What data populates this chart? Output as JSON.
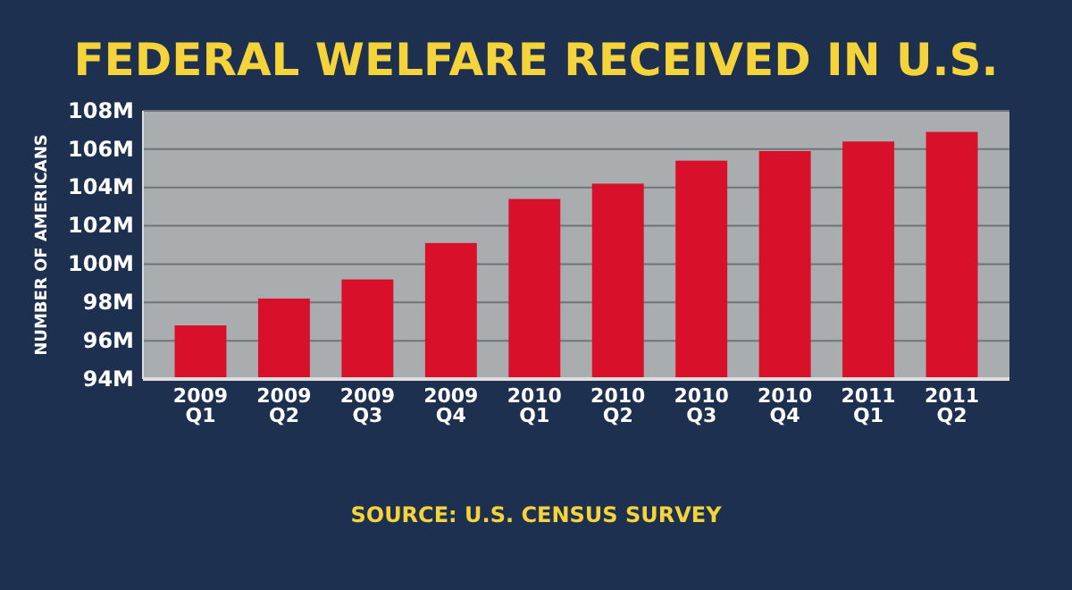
{
  "chart_data": {
    "type": "bar",
    "title": "FEDERAL WELFARE RECEIVED IN U.S.",
    "ylabel": "NUMBER OF AMERICANS",
    "categories": [
      "2009 Q1",
      "2009 Q2",
      "2009 Q3",
      "2009 Q4",
      "2010 Q1",
      "2010 Q2",
      "2010 Q3",
      "2010 Q4",
      "2011 Q1",
      "2011 Q2"
    ],
    "values": [
      96.8,
      98.2,
      99.2,
      101.1,
      103.4,
      104.2,
      105.4,
      105.9,
      106.4,
      106.9
    ],
    "color": "#d8102a",
    "ylim": [
      94,
      108
    ],
    "yticks": [
      {
        "value": 94,
        "label": "94M"
      },
      {
        "value": 96,
        "label": "96M"
      },
      {
        "value": 98,
        "label": "98M"
      },
      {
        "value": 100,
        "label": "100M"
      },
      {
        "value": 102,
        "label": "102M"
      },
      {
        "value": 104,
        "label": "104M"
      },
      {
        "value": 106,
        "label": "106M"
      },
      {
        "value": 108,
        "label": "108M"
      }
    ],
    "grid": "y",
    "annotations": [
      "SOURCE: U.S. CENSUS SURVEY"
    ]
  }
}
